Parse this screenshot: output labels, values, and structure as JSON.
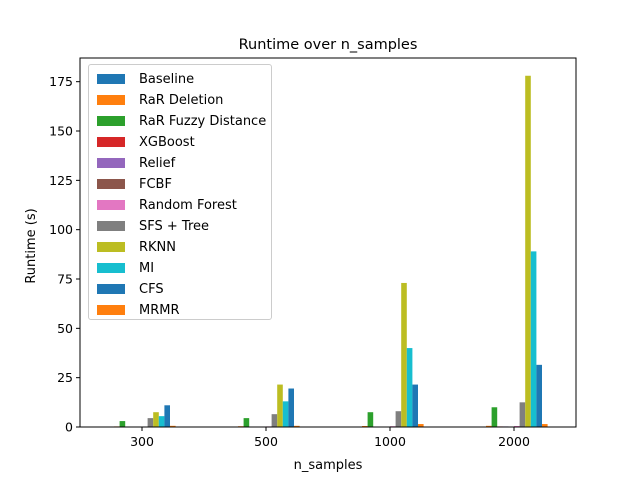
{
  "chart_data": {
    "type": "bar",
    "title": "Runtime over n_samples",
    "xlabel": "n_samples",
    "ylabel": "Runtime (s)",
    "categories": [
      "300",
      "500",
      "1000",
      "2000"
    ],
    "ylim": [
      0,
      187
    ],
    "yticks": [
      0,
      25,
      50,
      75,
      100,
      125,
      150,
      175
    ],
    "grid": false,
    "legend_position": "upper left",
    "series": [
      {
        "name": "Baseline",
        "color": "#1f77b4",
        "values": [
          0.1,
          0.1,
          0.1,
          0.2
        ]
      },
      {
        "name": "RaR Deletion",
        "color": "#ff7f0e",
        "values": [
          0.3,
          0.4,
          0.5,
          0.6
        ]
      },
      {
        "name": "RaR Fuzzy Distance",
        "color": "#2ca02c",
        "values": [
          3.0,
          4.5,
          7.5,
          10.0
        ]
      },
      {
        "name": "XGBoost",
        "color": "#d62728",
        "values": [
          0.1,
          0.1,
          0.2,
          0.3
        ]
      },
      {
        "name": "Relief",
        "color": "#9467bd",
        "values": [
          0.1,
          0.1,
          0.2,
          0.3
        ]
      },
      {
        "name": "FCBF",
        "color": "#8c564b",
        "values": [
          0.1,
          0.1,
          0.2,
          0.2
        ]
      },
      {
        "name": "Random Forest",
        "color": "#e377c2",
        "values": [
          0.2,
          0.3,
          0.4,
          0.5
        ]
      },
      {
        "name": "SFS + Tree",
        "color": "#7f7f7f",
        "values": [
          4.5,
          6.5,
          8.0,
          12.5
        ]
      },
      {
        "name": "RKNN",
        "color": "#bcbd22",
        "values": [
          7.5,
          21.5,
          73.0,
          178.0
        ]
      },
      {
        "name": "MI",
        "color": "#17becf",
        "values": [
          5.5,
          13.0,
          40.0,
          89.0
        ]
      },
      {
        "name": "CFS",
        "color": "#1f77b4",
        "values": [
          11.0,
          19.5,
          21.5,
          31.5
        ]
      },
      {
        "name": "MRMR",
        "color": "#ff7f0e",
        "values": [
          0.6,
          0.6,
          1.5,
          1.5
        ]
      }
    ]
  }
}
